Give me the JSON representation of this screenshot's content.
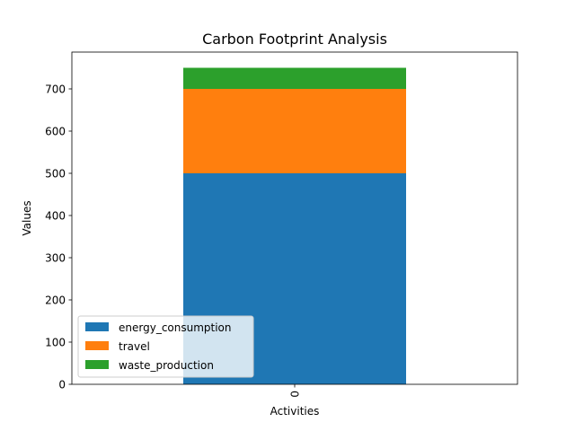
{
  "chart_data": {
    "type": "bar",
    "stacked": true,
    "title": "Carbon Footprint Analysis",
    "xlabel": "Activities",
    "ylabel": "Values",
    "categories": [
      "0"
    ],
    "ylim": [
      0,
      750
    ],
    "yticks": [
      0,
      100,
      200,
      300,
      400,
      500,
      600,
      700
    ],
    "grid": false,
    "legend_position": "lower-left",
    "series": [
      {
        "name": "energy_consumption",
        "values": [
          500
        ],
        "color": "#1f77b4"
      },
      {
        "name": "travel",
        "values": [
          200
        ],
        "color": "#ff7f0e"
      },
      {
        "name": "waste_production",
        "values": [
          50
        ],
        "color": "#2ca02c"
      }
    ]
  }
}
